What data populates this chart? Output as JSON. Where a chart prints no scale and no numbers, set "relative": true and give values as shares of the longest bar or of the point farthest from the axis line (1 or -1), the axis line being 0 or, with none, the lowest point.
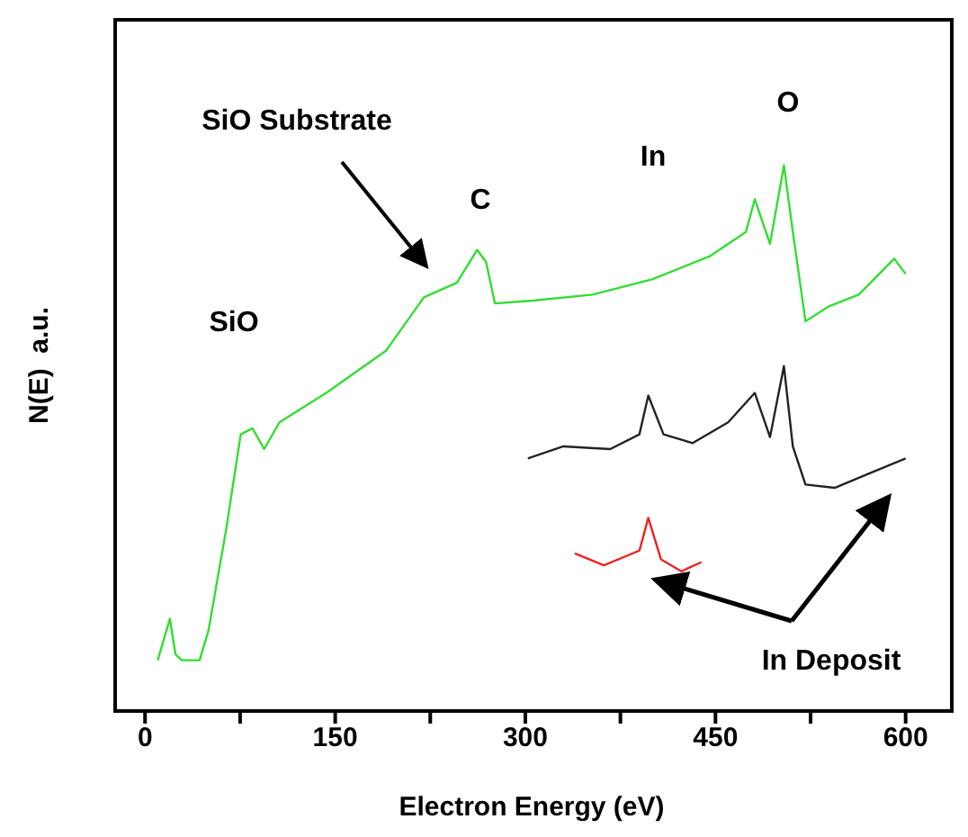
{
  "chart_data": {
    "type": "line",
    "relative": true,
    "xlabel": "Electron Energy (eV)",
    "ylabel": "N(E)  a.u.",
    "xlim": [
      -25,
      635
    ],
    "xticks": [
      0,
      {
        "value": 75,
        "label": null
      },
      150,
      {
        "value": 225,
        "label": null
      },
      300,
      {
        "value": 375,
        "label": null
      },
      450,
      {
        "value": 525,
        "label": null
      },
      600
    ],
    "marker": "none",
    "line_style": "solid",
    "annotations": [
      "SiO Substrate",
      "C",
      "In",
      "O",
      "SiO",
      "In Deposit"
    ],
    "series": [
      {
        "color": "#33dd33",
        "x": [
          10,
          19.6,
          24,
          29,
          43,
          50,
          64,
          75.5,
          84.8,
          94,
          106,
          143,
          190,
          220,
          246,
          262,
          269,
          276,
          306,
          353,
          400,
          446,
          474,
          481,
          493,
          504,
          511,
          521,
          539,
          563,
          591,
          600
        ],
        "values": [
          0.093,
          0.169,
          0.104,
          0.093,
          0.093,
          0.147,
          0.333,
          0.507,
          0.518,
          0.48,
          0.529,
          0.583,
          0.66,
          0.758,
          0.785,
          0.845,
          0.823,
          0.747,
          0.752,
          0.763,
          0.791,
          0.834,
          0.878,
          0.938,
          0.856,
          1.0,
          0.878,
          0.714,
          0.741,
          0.763,
          0.829,
          0.801
        ]
      },
      {
        "color": "#222222",
        "x": [
          302,
          330,
          367,
          390,
          397,
          409,
          432,
          460,
          481,
          493,
          504,
          511,
          521,
          544,
          572,
          600
        ],
        "values": [
          0.463,
          0.485,
          0.48,
          0.507,
          0.578,
          0.507,
          0.491,
          0.529,
          0.583,
          0.502,
          0.632,
          0.485,
          0.415,
          0.409,
          0.436,
          0.463
        ]
      },
      {
        "color": "#ee2222",
        "x": [
          339,
          362,
          390,
          397,
          407,
          423,
          439
        ],
        "values": [
          0.289,
          0.267,
          0.294,
          0.354,
          0.278,
          0.256,
          0.273
        ]
      }
    ]
  }
}
